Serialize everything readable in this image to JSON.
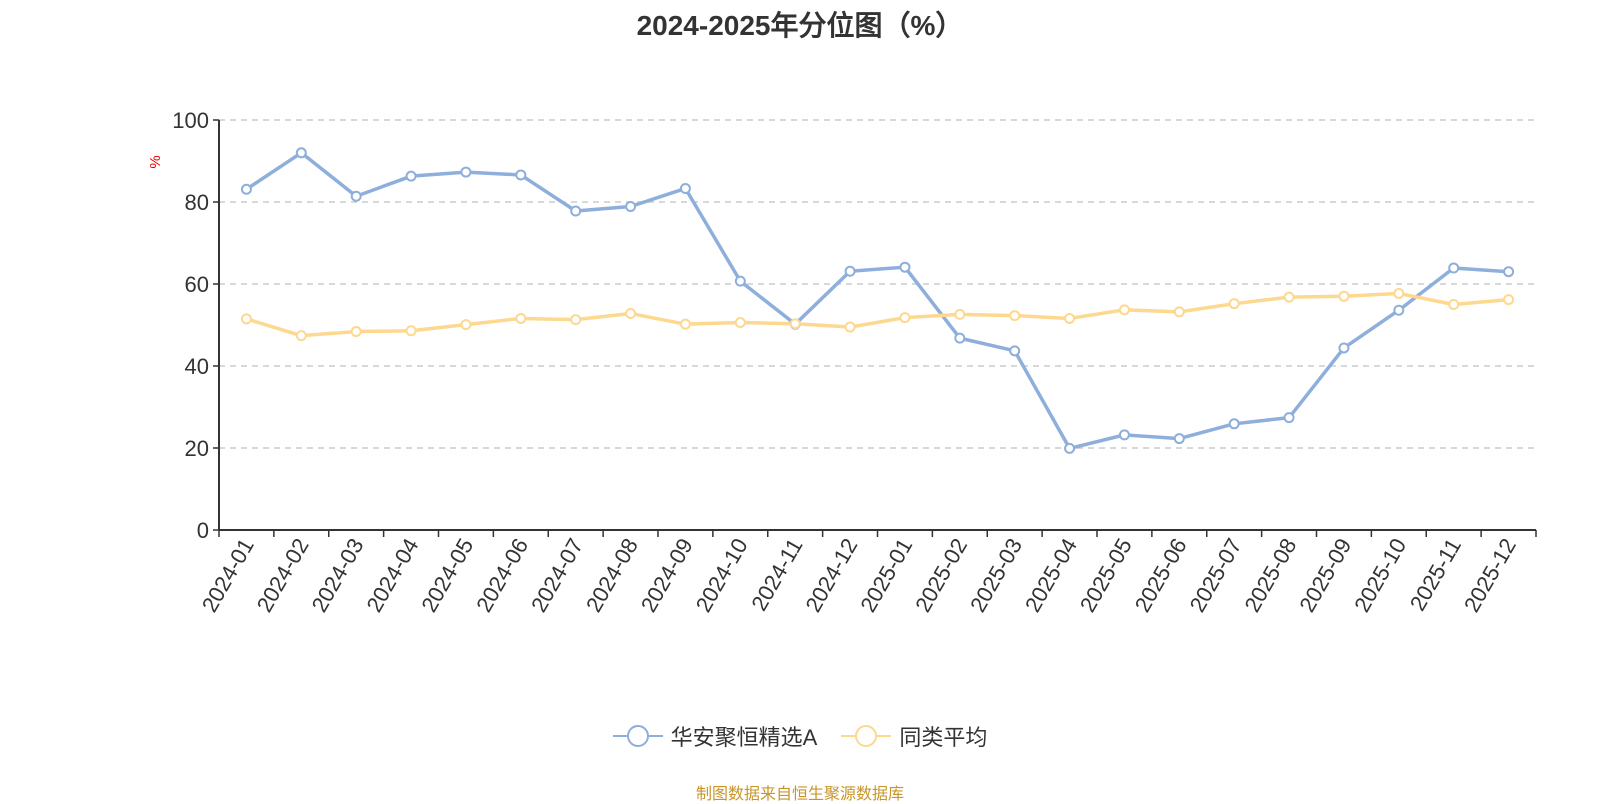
{
  "chart_data": {
    "type": "line",
    "title": "2024-2025年分位图（%）",
    "ylabel": "%",
    "xlabel": "",
    "ylim": [
      0,
      100
    ],
    "yticks": [
      0,
      20,
      40,
      60,
      80,
      100
    ],
    "grid": true,
    "legend_position": "bottom",
    "categories": [
      "2024-01",
      "2024-02",
      "2024-03",
      "2024-04",
      "2024-05",
      "2024-06",
      "2024-07",
      "2024-08",
      "2024-09",
      "2024-10",
      "2024-11",
      "2024-12",
      "2025-01",
      "2025-02",
      "2025-03",
      "2025-04",
      "2025-05",
      "2025-06",
      "2025-07",
      "2025-08",
      "2025-09",
      "2025-10",
      "2025-11",
      "2025-12"
    ],
    "series": [
      {
        "name": "华安聚恒精选A",
        "color": "#8eaedc",
        "values": [
          83.1,
          92.0,
          81.4,
          86.3,
          87.3,
          86.6,
          77.8,
          78.9,
          83.3,
          60.7,
          50.2,
          63.1,
          64.1,
          46.8,
          43.7,
          19.9,
          23.2,
          22.3,
          25.9,
          27.4,
          44.4,
          53.6,
          63.9,
          63.0
        ]
      },
      {
        "name": "同类平均",
        "color": "#fdd88f",
        "values": [
          51.5,
          47.4,
          48.4,
          48.6,
          50.1,
          51.6,
          51.3,
          52.8,
          50.2,
          50.6,
          50.3,
          49.5,
          51.8,
          52.6,
          52.3,
          51.6,
          53.7,
          53.2,
          55.2,
          56.8,
          57.0,
          57.7,
          55.0,
          56.2
        ]
      }
    ]
  },
  "source": "制图数据来自恒生聚源数据库"
}
